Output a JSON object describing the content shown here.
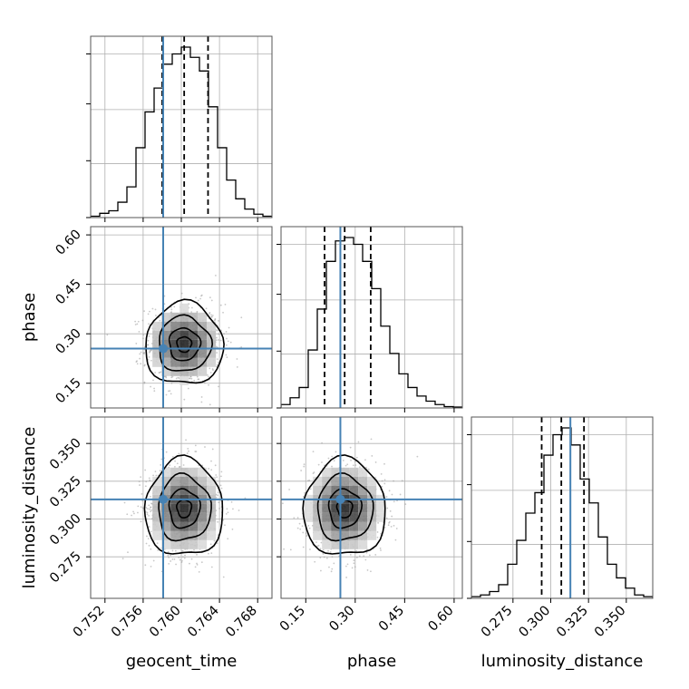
{
  "chart_data": {
    "type": "corner",
    "parameters": [
      "geocent_time",
      "phase",
      "luminosity_distance"
    ],
    "truths": [
      0.7581,
      0.255,
      0.313
    ],
    "quantiles": [
      [
        0.758,
        0.7603,
        0.7628
      ],
      [
        0.207,
        0.268,
        0.347
      ],
      [
        0.294,
        0.307,
        0.322
      ]
    ],
    "ranges": [
      [
        0.7505,
        0.7695
      ],
      [
        0.075,
        0.625
      ],
      [
        0.2475,
        0.3675
      ]
    ],
    "ticks": [
      {
        "values": [
          0.752,
          0.756,
          0.76,
          0.764,
          0.768
        ],
        "labels": [
          "0.752",
          "0.756",
          "0.760",
          "0.764",
          "0.768"
        ]
      },
      {
        "values": [
          0.15,
          0.3,
          0.45,
          0.6
        ],
        "labels": [
          "0.15",
          "0.30",
          "0.45",
          "0.60"
        ]
      },
      {
        "values": [
          0.275,
          0.3,
          0.325,
          0.35
        ],
        "labels": [
          "0.275",
          "0.300",
          "0.325",
          "0.350"
        ]
      }
    ],
    "histograms": [
      [
        0.8,
        2.5,
        4,
        9,
        18,
        41,
        62,
        76,
        90,
        96,
        100,
        94,
        86,
        65,
        41,
        22,
        11,
        5,
        2,
        0.8
      ],
      [
        2,
        6,
        12,
        34,
        58,
        86,
        98,
        100,
        96,
        86,
        70,
        48,
        32,
        20,
        12,
        7,
        4,
        2,
        0.8,
        0.5
      ],
      [
        1,
        2,
        4,
        8,
        20,
        34,
        50,
        62,
        84,
        96,
        100,
        90,
        70,
        56,
        36,
        20,
        12,
        6,
        2,
        1
      ]
    ],
    "posterior_mean": [
      0.7603,
      0.268,
      0.307
    ],
    "posterior_std": [
      0.0019,
      0.058,
      0.015
    ],
    "grid": true,
    "line_color": "#000000",
    "truth_color": "#4682b4",
    "quantile_style": "dashed"
  }
}
